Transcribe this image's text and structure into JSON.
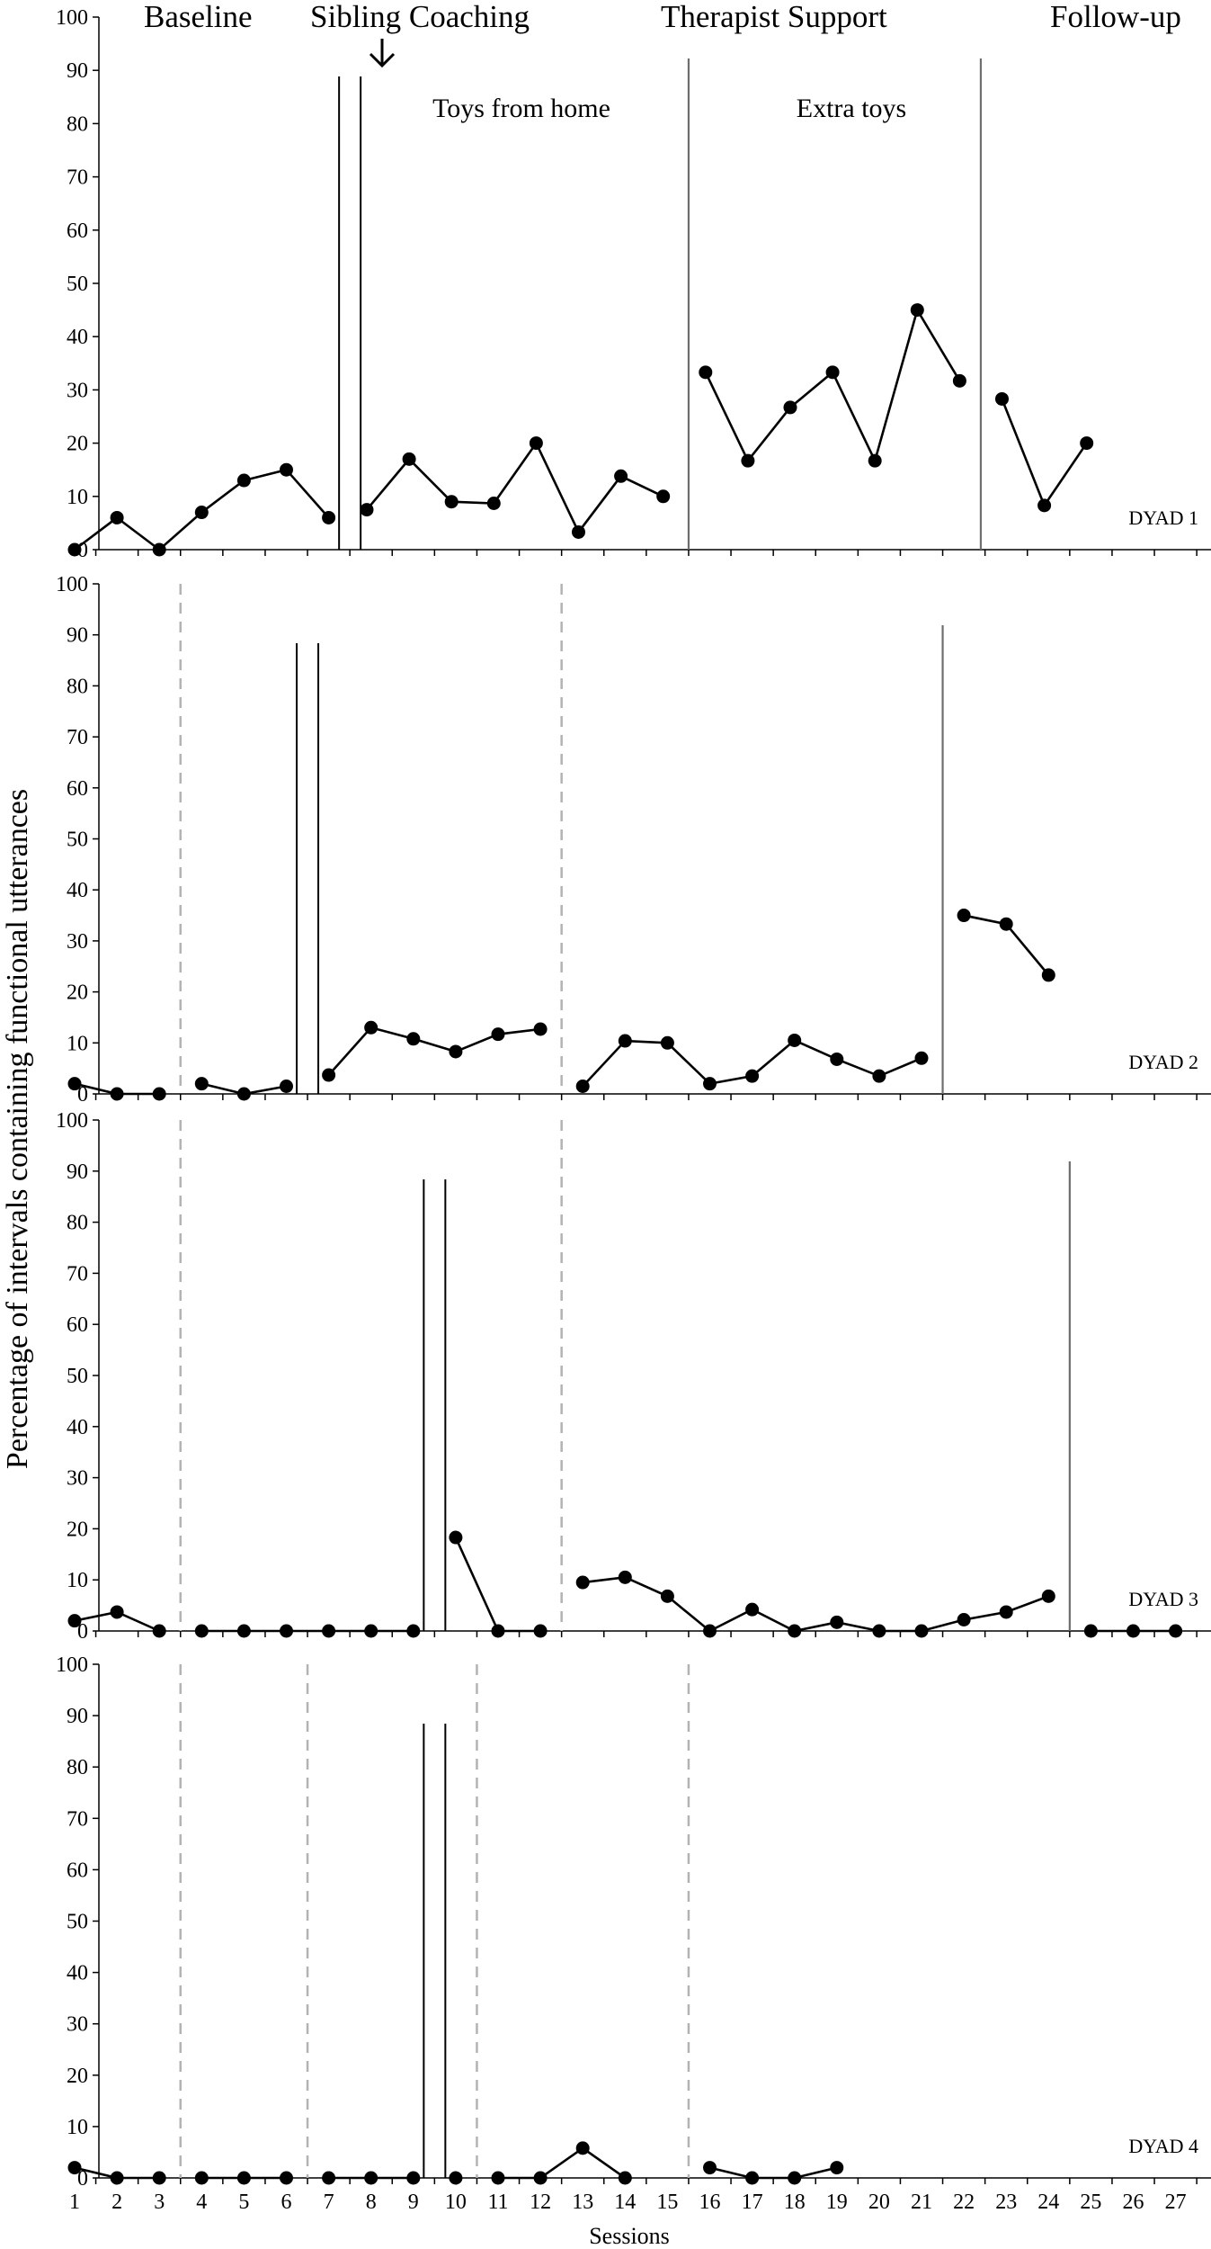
{
  "chart_data": {
    "type": "line",
    "phase_labels": [
      "Baseline",
      "Sibling Coaching",
      "Therapist Support",
      "Follow-up"
    ],
    "condition_labels": [
      "Toys from home",
      "Extra toys"
    ],
    "ylabel": "Percentage of intervals containing functional utterances",
    "xlabel": "Sessions",
    "ylim": [
      0,
      100
    ],
    "yticks": [
      0,
      10,
      20,
      30,
      40,
      50,
      60,
      70,
      80,
      90,
      100
    ],
    "xticks": [
      1,
      2,
      3,
      4,
      5,
      6,
      7,
      8,
      9,
      10,
      11,
      12,
      13,
      14,
      15,
      16,
      17,
      18,
      19,
      20,
      21,
      22,
      23,
      24,
      25,
      26,
      27
    ],
    "panels": [
      {
        "name": "DYAD 1",
        "segments": [
          [
            [
              1,
              0
            ],
            [
              2,
              6
            ],
            [
              3,
              0
            ],
            [
              4,
              7
            ],
            [
              5,
              13
            ],
            [
              6,
              15
            ],
            [
              7,
              6
            ]
          ],
          [
            [
              7.9,
              7.5
            ],
            [
              8.9,
              17
            ],
            [
              9.9,
              9
            ],
            [
              10.9,
              8.7
            ],
            [
              11.9,
              20
            ],
            [
              12.9,
              3.3
            ],
            [
              13.9,
              13.8
            ],
            [
              14.9,
              10
            ]
          ],
          [
            [
              15.9,
              33.3
            ],
            [
              16.9,
              16.7
            ],
            [
              17.9,
              26.7
            ],
            [
              18.9,
              33.3
            ],
            [
              19.9,
              16.7
            ],
            [
              20.9,
              45
            ],
            [
              21.9,
              31.7
            ]
          ],
          [
            [
              22.9,
              28.3
            ],
            [
              23.9,
              8.3
            ],
            [
              24.9,
              20
            ]
          ]
        ],
        "dashed_lines": [],
        "double_lines": [
          7.5
        ],
        "solid_lines": [
          15.5,
          22.4
        ]
      },
      {
        "name": "DYAD 2",
        "segments": [
          [
            [
              1,
              2
            ],
            [
              2,
              0
            ],
            [
              3,
              0
            ]
          ],
          [
            [
              4,
              2
            ],
            [
              5,
              0
            ],
            [
              6,
              1.5
            ]
          ],
          [
            [
              7,
              3.7
            ],
            [
              8,
              13
            ],
            [
              9,
              10.8
            ],
            [
              10,
              8.3
            ],
            [
              11,
              11.7
            ],
            [
              12,
              12.7
            ]
          ],
          [
            [
              13,
              1.5
            ],
            [
              14,
              10.4
            ],
            [
              15,
              10
            ],
            [
              16,
              2
            ],
            [
              17,
              3.5
            ],
            [
              18,
              10.5
            ],
            [
              19,
              6.8
            ],
            [
              20,
              3.5
            ],
            [
              21,
              7
            ]
          ],
          [
            [
              22,
              35
            ],
            [
              23,
              33.3
            ],
            [
              24,
              23.3
            ]
          ]
        ],
        "dashed_lines": [
          3.5,
          12.5
        ],
        "double_lines": [
          6.5
        ],
        "solid_lines": [
          21.5
        ]
      },
      {
        "name": "DYAD 3",
        "segments": [
          [
            [
              1,
              2
            ],
            [
              2,
              3.7
            ],
            [
              3,
              0
            ]
          ],
          [
            [
              4,
              0
            ],
            [
              5,
              0
            ],
            [
              6,
              0
            ],
            [
              7,
              0
            ],
            [
              8,
              0
            ],
            [
              9,
              0
            ]
          ],
          [
            [
              10,
              18.3
            ],
            [
              11,
              0
            ],
            [
              12,
              0
            ]
          ],
          [
            [
              13,
              9.5
            ],
            [
              14,
              10.5
            ],
            [
              15,
              6.8
            ],
            [
              16,
              0
            ],
            [
              17,
              4.2
            ],
            [
              18,
              0
            ],
            [
              19,
              1.7
            ],
            [
              20,
              0
            ],
            [
              21,
              0
            ],
            [
              22,
              2.2
            ],
            [
              23,
              3.7
            ],
            [
              24,
              6.8
            ]
          ],
          [
            [
              25,
              0
            ],
            [
              26,
              0
            ],
            [
              27,
              0
            ]
          ]
        ],
        "dashed_lines": [
          3.5,
          12.5
        ],
        "double_lines": [
          9.5
        ],
        "solid_lines": [
          24.5
        ]
      },
      {
        "name": "DYAD 4",
        "segments": [
          [
            [
              1,
              2
            ],
            [
              2,
              0
            ],
            [
              3,
              0
            ]
          ],
          [
            [
              4,
              0
            ],
            [
              5,
              0
            ],
            [
              6,
              0
            ]
          ],
          [
            [
              7,
              0
            ],
            [
              8,
              0
            ],
            [
              9,
              0
            ]
          ],
          [
            [
              10,
              0
            ]
          ],
          [
            [
              11,
              0
            ],
            [
              12,
              0
            ],
            [
              13,
              5.8
            ],
            [
              14,
              0
            ]
          ],
          [
            [
              16,
              2
            ],
            [
              17,
              0
            ],
            [
              18,
              0
            ],
            [
              19,
              2
            ]
          ]
        ],
        "dashed_lines": [
          3.5,
          6.5,
          10.5,
          15.5
        ],
        "double_lines": [
          9.5
        ],
        "solid_lines": []
      }
    ]
  }
}
